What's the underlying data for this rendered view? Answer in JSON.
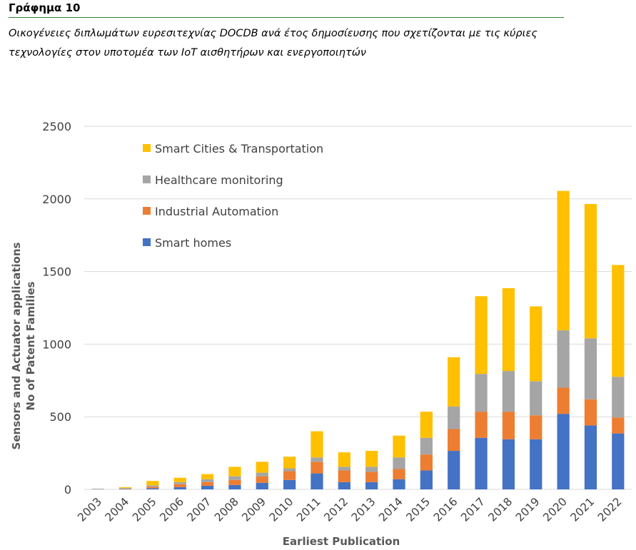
{
  "figure": {
    "label": "Γράφημα 10",
    "caption_line1": "Οικογένειες διπλωμάτων ευρεσιτεχνίας DOCDB ανά έτος δημοσίευσης που σχετίζονται με τις κύριες",
    "caption_line2": "τεχνολογίες στον υποτομέα των IoT αισθητήρων και ενεργοποιητών"
  },
  "chart_data": {
    "type": "bar",
    "stacked": true,
    "title": "",
    "xlabel": "Earliest Publication",
    "ylabel_line1": "Sensors and Actuator applications",
    "ylabel_line2": "No of Patent Families",
    "ylim": [
      0,
      2500
    ],
    "yticks": [
      0,
      500,
      1000,
      1500,
      2000,
      2500
    ],
    "grid": true,
    "legend_position": "top-left",
    "categories": [
      "2003",
      "2004",
      "2005",
      "2006",
      "2007",
      "2008",
      "2009",
      "2010",
      "2011",
      "2012",
      "2013",
      "2014",
      "2015",
      "2016",
      "2017",
      "2018",
      "2019",
      "2020",
      "2021",
      "2022"
    ],
    "series": [
      {
        "name": "Smart homes",
        "color": "#4472C4",
        "values": [
          2,
          3,
          8,
          15,
          25,
          30,
          45,
          65,
          110,
          50,
          50,
          70,
          130,
          265,
          355,
          345,
          345,
          520,
          440,
          385
        ]
      },
      {
        "name": "Industrial Automation",
        "color": "#ED7D31",
        "values": [
          1,
          3,
          10,
          20,
          25,
          35,
          45,
          60,
          80,
          80,
          70,
          70,
          110,
          150,
          180,
          190,
          165,
          180,
          180,
          110
        ]
      },
      {
        "name": "Healthcare monitoring",
        "color": "#A5A5A5",
        "values": [
          1,
          3,
          10,
          15,
          20,
          25,
          25,
          20,
          30,
          25,
          35,
          80,
          115,
          155,
          260,
          280,
          235,
          395,
          420,
          280
        ]
      },
      {
        "name": "Smart Cities & Transportation",
        "color": "#FFC000",
        "values": [
          0,
          6,
          30,
          30,
          35,
          65,
          75,
          80,
          180,
          100,
          110,
          150,
          180,
          340,
          535,
          570,
          515,
          960,
          925,
          770
        ]
      }
    ],
    "legend_order": [
      "Smart Cities & Transportation",
      "Healthcare monitoring",
      "Industrial Automation",
      "Smart homes"
    ]
  }
}
